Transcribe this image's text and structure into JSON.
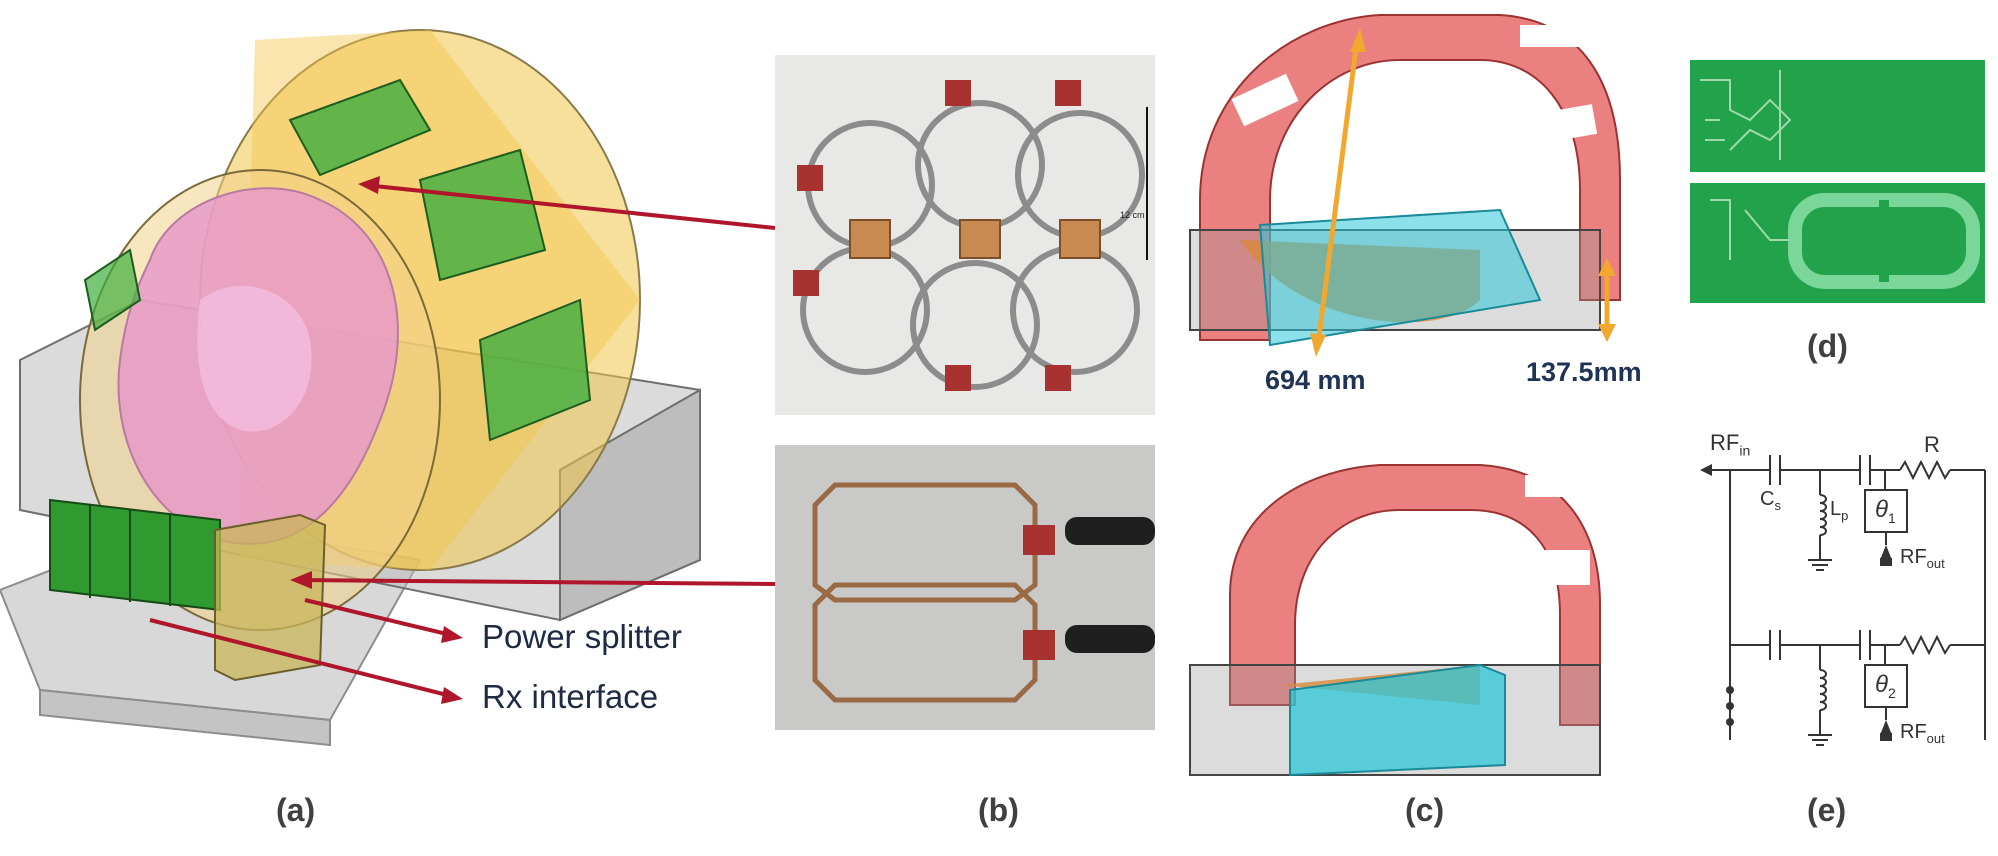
{
  "panels": {
    "a": {
      "label": "(a)",
      "callouts": {
        "splitter": "Power splitter",
        "rx": "Rx interface"
      }
    },
    "b": {
      "label": "(b)",
      "scale_text": "12 cm"
    },
    "c": {
      "label": "(c)",
      "dim_length": "694 mm",
      "dim_height": "137.5mm"
    },
    "d": {
      "label": "(d)"
    },
    "e": {
      "label": "(e)",
      "rf_in": "RF",
      "rf_in_sub": "in",
      "cap_label": "C",
      "cap_sub": "s",
      "ind_label": "L",
      "ind_sub": "p",
      "res_label": "R",
      "theta1": "θ",
      "theta1_sub": "1",
      "theta2": "θ",
      "theta2_sub": "2",
      "rf_out1": "RF",
      "rf_out1_sub": "out",
      "rf_out2": "RF",
      "rf_out2_sub": "out"
    }
  },
  "colors": {
    "arrow": "#b0162b",
    "coil_green": "#2e9e44",
    "frame_red": "#e86a6a",
    "base_cyan": "#2ec7d8",
    "dim_arrow": "#f2a72e"
  }
}
